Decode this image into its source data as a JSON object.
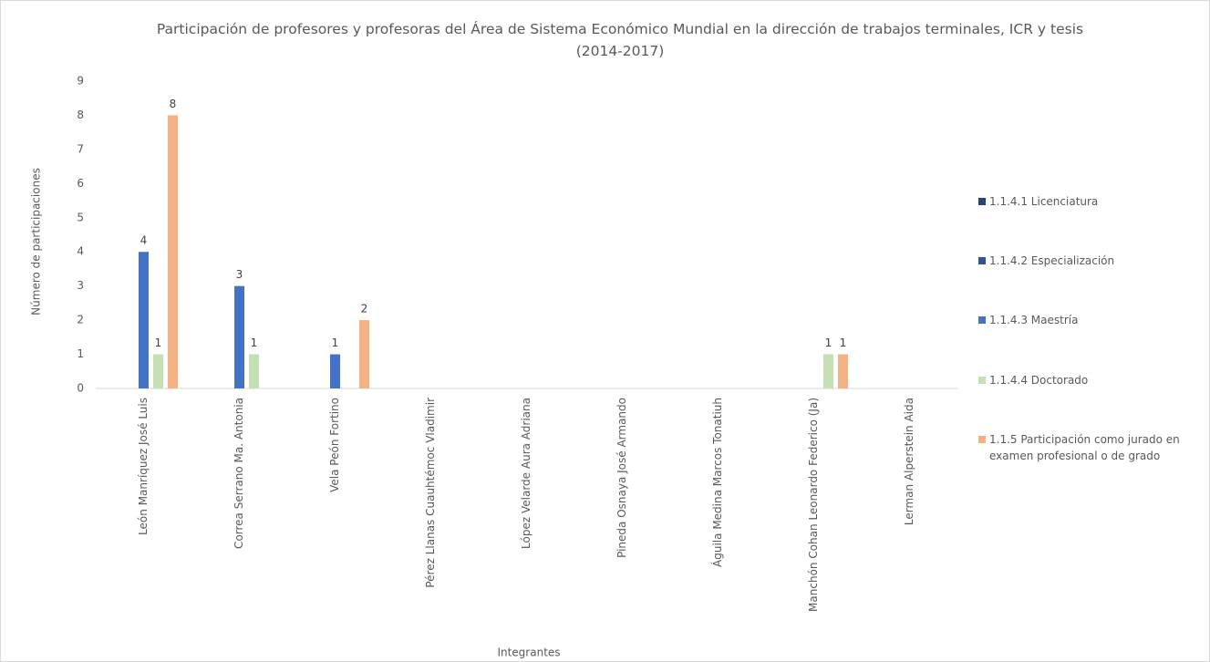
{
  "chart_data": {
    "type": "bar",
    "title": "Participación de profesores y profesoras del Área de Sistema Económico Mundial en la dirección de trabajos terminales, ICR y tesis (2014-2017)",
    "x_label": "Integrantes",
    "y_label": "Número de participaciones",
    "categories": [
      "León Manríquez José Luis",
      "Correa Serrano Ma. Antonia",
      "Vela Peón Fortino",
      "Pérez Llanas Cuauhtémoc Vladimir",
      "López Velarde Aura Adriana",
      "Pineda Osnaya José Armando",
      "Águila Medina Marcos Tonatiuh",
      "Manchón Cohan Leonardo Federico (Ja)",
      "Lerman Alperstein Aida"
    ],
    "series": [
      {
        "name": "1.1.4.1 Licenciatura",
        "color": "#264478",
        "values": [
          0,
          0,
          0,
          0,
          0,
          0,
          0,
          0,
          0
        ]
      },
      {
        "name": "1.1.4.2 Especialización",
        "color": "#2f5597",
        "values": [
          0,
          0,
          0,
          0,
          0,
          0,
          0,
          0,
          0
        ]
      },
      {
        "name": "1.1.4.3 Maestría",
        "color": "#4472c4",
        "values": [
          4,
          3,
          1,
          0,
          0,
          0,
          0,
          0,
          0
        ]
      },
      {
        "name": "1.1.4.4 Doctorado",
        "color": "#c5e0b4",
        "values": [
          1,
          1,
          0,
          0,
          0,
          0,
          0,
          1,
          0
        ]
      },
      {
        "name": "1.1.5 Participación como jurado en examen profesional o de grado",
        "color": "#f4b183",
        "values": [
          8,
          0,
          2,
          0,
          0,
          0,
          0,
          1,
          0
        ]
      }
    ],
    "ylim": [
      0,
      9
    ],
    "yticks": [
      0,
      1,
      2,
      3,
      4,
      5,
      6,
      7,
      8,
      9
    ],
    "grid": false,
    "legend": "right"
  }
}
